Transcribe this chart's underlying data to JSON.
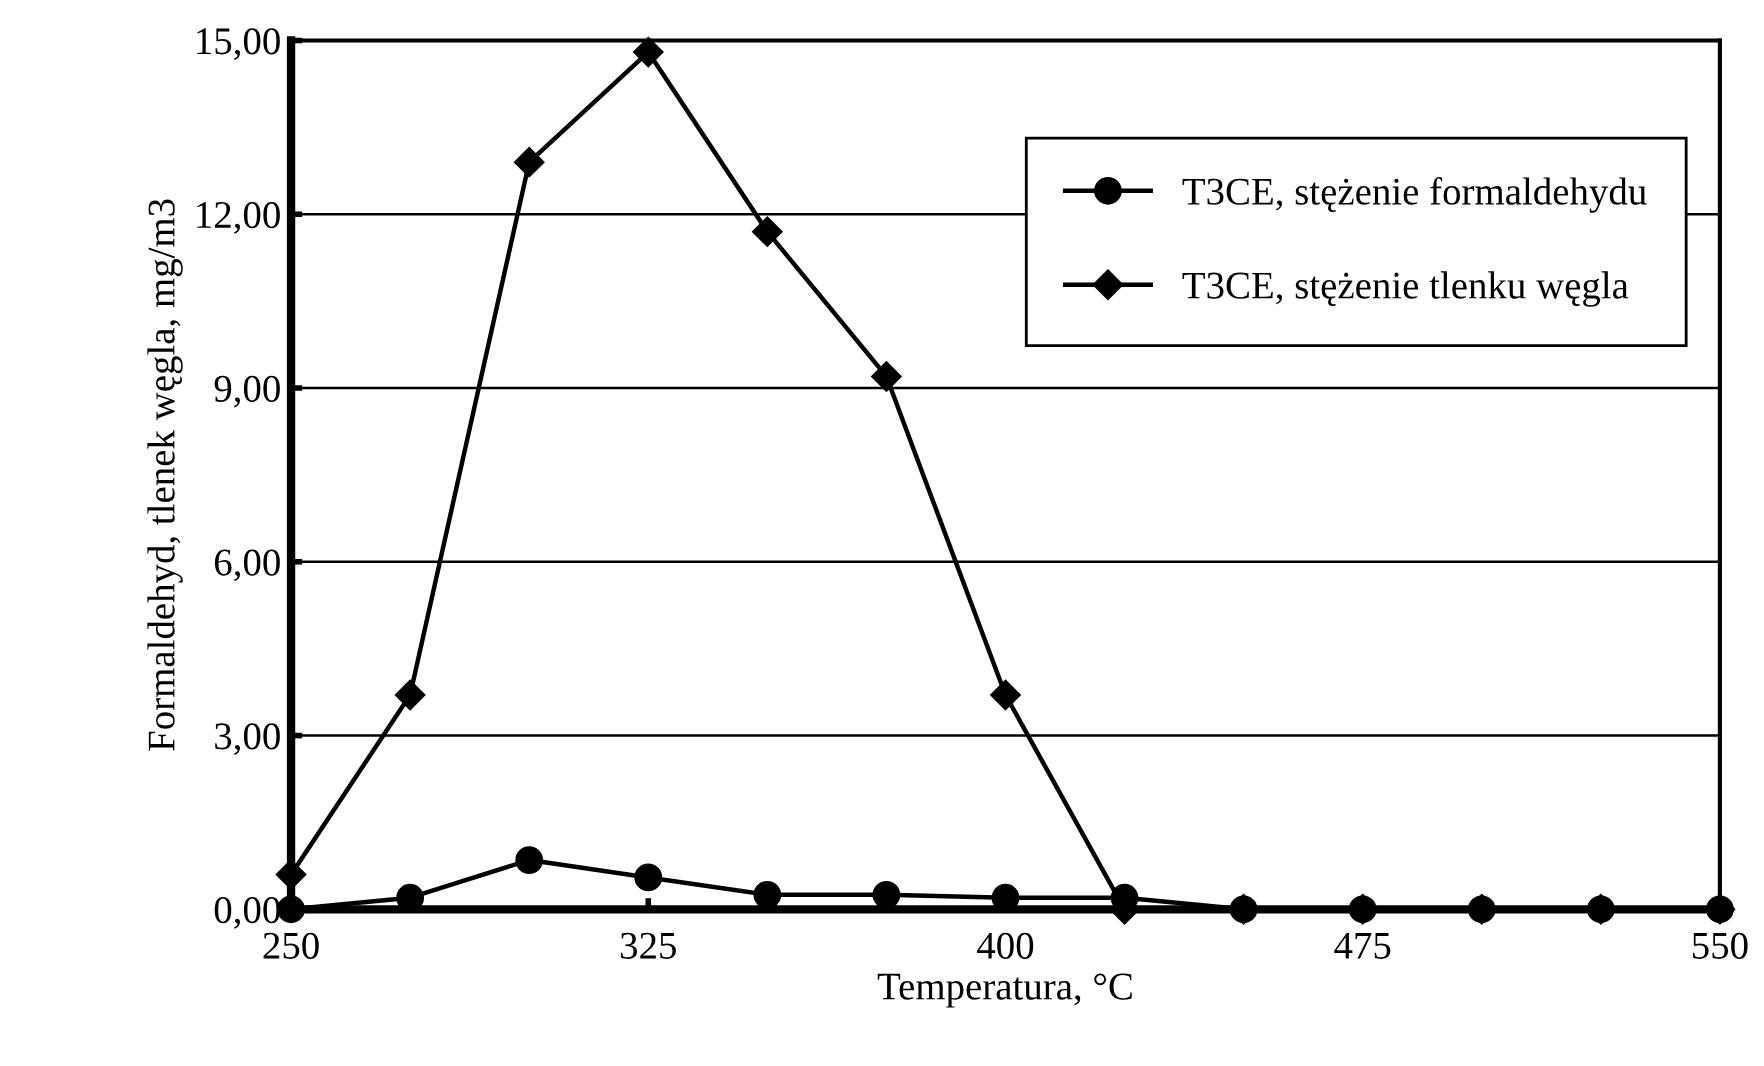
{
  "chart_data": {
    "type": "line",
    "xlabel": "Temperatura, °C",
    "ylabel": "Formaldehyd, tlenek węgla, mg/m3",
    "x": [
      250,
      275,
      300,
      325,
      350,
      375,
      400,
      425,
      450,
      475,
      500,
      525,
      550
    ],
    "series": [
      {
        "name": "T3CE, stężenie formaldehydu",
        "color": "#000000",
        "marker": "circle",
        "values": [
          0,
          0.2,
          0.85,
          0.55,
          0.25,
          0.25,
          0.2,
          0.2,
          0,
          0,
          0,
          0,
          0
        ]
      },
      {
        "name": "T3CE, stężenie tlenku węgla",
        "color": "#000000",
        "marker": "diamond",
        "values": [
          0.6,
          3.7,
          12.9,
          14.8,
          11.7,
          9.2,
          3.7,
          0,
          0,
          0,
          0,
          0,
          0
        ]
      }
    ],
    "xlim": [
      250,
      550
    ],
    "xticks": [
      250,
      325,
      400,
      475,
      550
    ],
    "ylim": [
      0,
      15
    ],
    "yticks": [
      {
        "value": 0,
        "label": "0,00"
      },
      {
        "value": 3,
        "label": "3,00"
      },
      {
        "value": 6,
        "label": "6,00"
      },
      {
        "value": 9,
        "label": "9,00"
      },
      {
        "value": 12,
        "label": "12,00"
      },
      {
        "value": 15,
        "label": "15,00"
      }
    ],
    "grid": "y",
    "legend": "top right",
    "line_style": "solid"
  }
}
